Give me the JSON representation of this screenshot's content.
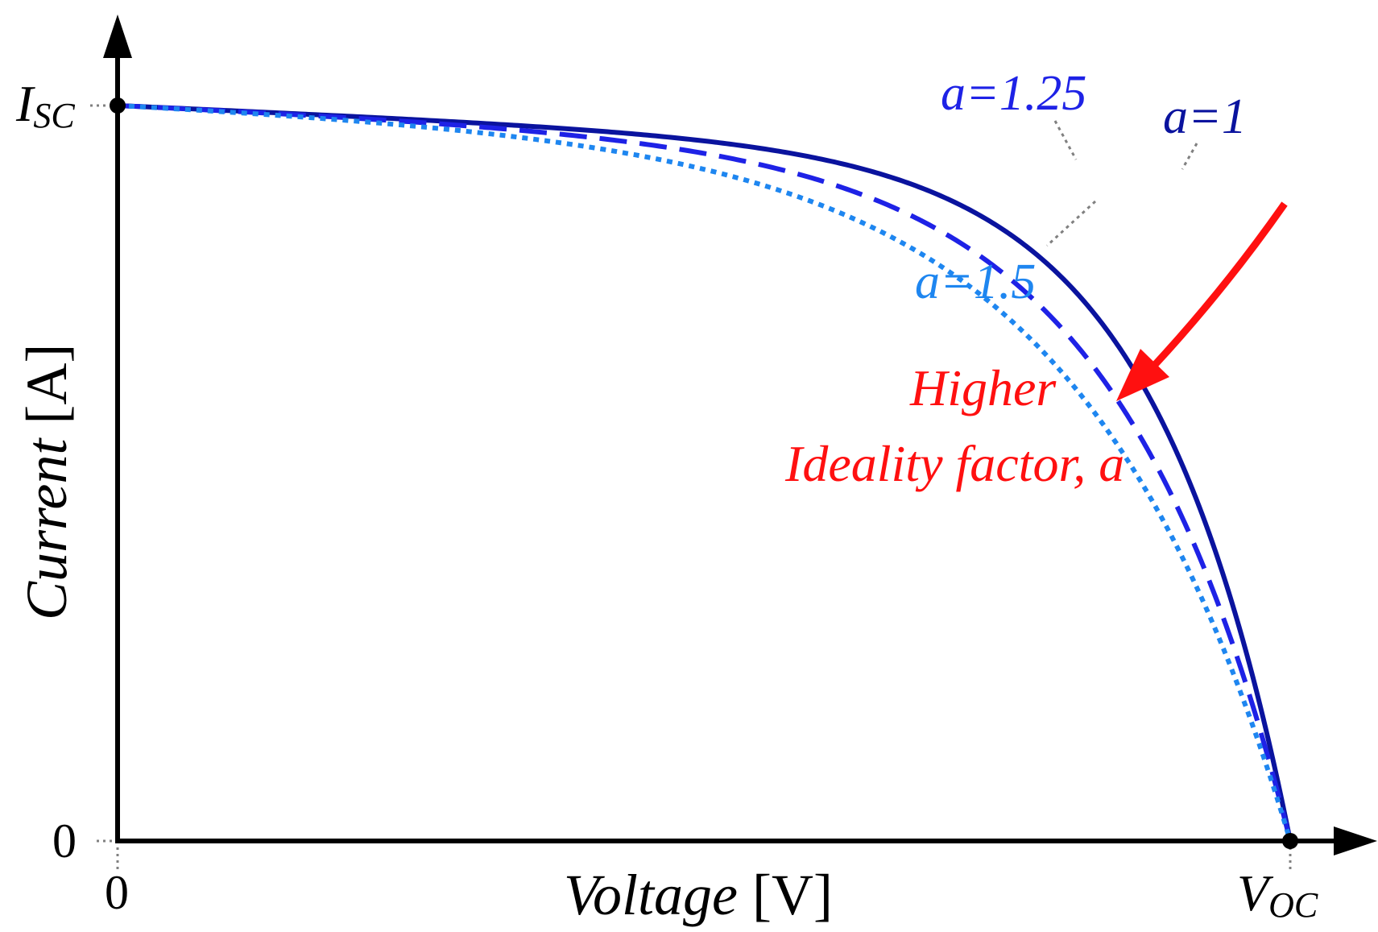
{
  "colors": {
    "axis": "#000000",
    "a1": "#0A139E",
    "a125": "#1E22E6",
    "a15": "#1E86F0",
    "arrow": "#FF1010",
    "leader": "#808080"
  },
  "chart_data": {
    "type": "line",
    "xlabel": {
      "italic": "Voltage",
      "unit": "[V]"
    },
    "ylabel": {
      "italic": "Current",
      "unit": "[A]"
    },
    "x_ticks": {
      "zero": "0",
      "voc_main": "V",
      "voc_sub": "OC"
    },
    "y_ticks": {
      "zero": "0",
      "isc_main": "I",
      "isc_sub": "SC"
    },
    "xlim": [
      0,
      1
    ],
    "ylim": [
      0,
      1
    ],
    "x_unit_note": "normalized: 1 = V_OC",
    "y_unit_note": "normalized: 1 = I_SC",
    "series": [
      {
        "name": "a=1",
        "a": 1.0,
        "style": "solid",
        "color": "#0A139E"
      },
      {
        "name": "a=1.25",
        "a": 1.25,
        "style": "dashed",
        "color": "#1E22E6"
      },
      {
        "name": "a=1.5",
        "a": 1.5,
        "style": "dotted",
        "color": "#1E86F0"
      }
    ],
    "annotation": {
      "line1": "Higher",
      "line2": "Ideality factor, a"
    },
    "legend": "inline labels near curves (top-right)"
  }
}
